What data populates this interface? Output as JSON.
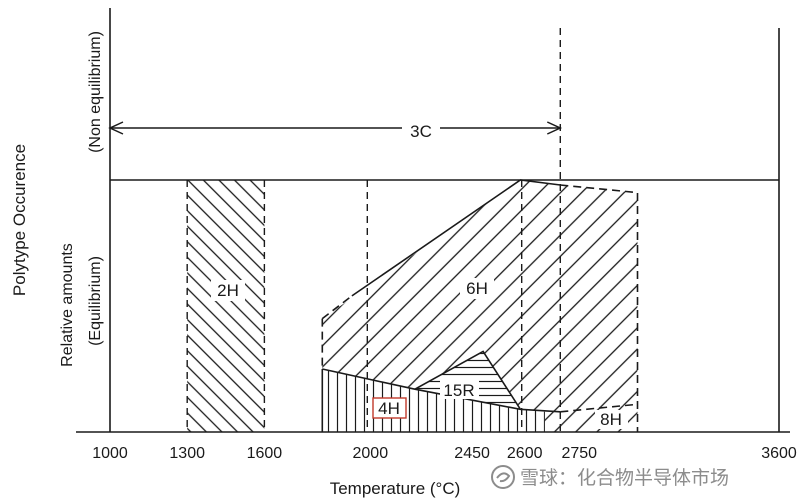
{
  "chart_data": {
    "type": "area",
    "xlabel": "Temperature (°C)",
    "ylabel": "Polytype Occurence",
    "xlim": [
      1000,
      3600
    ],
    "ylim": [
      0,
      1
    ],
    "x_ticks": [
      {
        "value": 1000,
        "label": "1000"
      },
      {
        "value": 1300,
        "label": "1300"
      },
      {
        "value": 1600,
        "label": "1600"
      },
      {
        "value": 2000,
        "label": "2000"
      },
      {
        "value": 2450,
        "label": "2450"
      },
      {
        "value": 2600,
        "label": "2600"
      },
      {
        "value": 2750,
        "label": "2750"
      },
      {
        "value": 3600,
        "label": "3600"
      }
    ],
    "panels": {
      "non_equilibrium": {
        "label": "(Non equilibrium)"
      },
      "equilibrium": {
        "label_lines": [
          "Relative amounts",
          "(Equilibrium)"
        ]
      }
    },
    "series": [
      {
        "name": "3C",
        "panel": "non_equilibrium",
        "style": "double-arrow",
        "x_range": [
          1000,
          2750
        ]
      },
      {
        "name": "2H",
        "panel": "equilibrium",
        "hatch": "backslash",
        "points": [
          [
            1300,
            0
          ],
          [
            1600,
            0
          ],
          [
            1600,
            1
          ],
          [
            1300,
            1
          ]
        ]
      },
      {
        "name": "6H",
        "panel": "equilibrium",
        "hatch": "slash",
        "points": [
          [
            1825,
            0.45
          ],
          [
            2595,
            1.0
          ],
          [
            2750,
            0.98
          ],
          [
            3050,
            0.95
          ],
          [
            3050,
            0.11
          ],
          [
            2750,
            0.08
          ],
          [
            2595,
            0.09
          ],
          [
            2450,
            0.32
          ],
          [
            2185,
            0.17
          ],
          [
            1825,
            0.25
          ]
        ]
      },
      {
        "name": "15R",
        "panel": "equilibrium",
        "hatch": "horizontal",
        "points": [
          [
            2185,
            0.17
          ],
          [
            2450,
            0.32
          ],
          [
            2595,
            0.09
          ]
        ]
      },
      {
        "name": "4H",
        "panel": "equilibrium",
        "hatch": "vertical",
        "points": [
          [
            1825,
            0.25
          ],
          [
            2185,
            0.17
          ],
          [
            2595,
            0.09
          ],
          [
            2690,
            0.08
          ],
          [
            2690,
            0
          ],
          [
            1825,
            0
          ]
        ]
      },
      {
        "name": "8H",
        "panel": "equilibrium",
        "hatch": "slash",
        "points": [
          [
            2690,
            0.08
          ],
          [
            2750,
            0.08
          ],
          [
            3050,
            0.11
          ],
          [
            3050,
            0
          ],
          [
            2690,
            0
          ]
        ]
      }
    ],
    "boundaries": [
      {
        "style": "dashed",
        "points": [
          [
            1825,
            0.45
          ],
          [
            1940,
            0.54
          ]
        ]
      },
      {
        "style": "solid",
        "points": [
          [
            1940,
            0.54
          ],
          [
            2595,
            1.0
          ],
          [
            2750,
            0.98
          ]
        ]
      },
      {
        "style": "dashed",
        "points": [
          [
            2750,
            0.98
          ],
          [
            3050,
            0.95
          ],
          [
            3050,
            0.0
          ]
        ]
      },
      {
        "style": "dashed",
        "points": [
          [
            1825,
            0.45
          ],
          [
            1825,
            0.25
          ]
        ]
      },
      {
        "style": "solid",
        "points": [
          [
            1825,
            0.25
          ],
          [
            1825,
            0.0
          ]
        ]
      },
      {
        "style": "solid",
        "points": [
          [
            1825,
            0.25
          ],
          [
            2185,
            0.17
          ],
          [
            2595,
            0.09
          ],
          [
            2750,
            0.08
          ]
        ]
      },
      {
        "style": "dashed",
        "points": [
          [
            2750,
            0.08
          ],
          [
            3050,
            0.11
          ]
        ]
      },
      {
        "style": "solid",
        "points": [
          [
            2185,
            0.17
          ],
          [
            2450,
            0.32
          ],
          [
            2595,
            0.09
          ]
        ]
      }
    ],
    "reference_lines": [
      {
        "x": 1300,
        "style": "dashed",
        "span": "equilibrium"
      },
      {
        "x": 1600,
        "style": "dashed",
        "span": "equilibrium"
      },
      {
        "x": 2000,
        "style": "dashed",
        "span": "equilibrium"
      },
      {
        "x": 2600,
        "style": "dashed",
        "span": "equilibrium"
      },
      {
        "x": 2750,
        "style": "dashed",
        "span": "both"
      }
    ],
    "highlight": {
      "series": "4H",
      "color": "#c0392b"
    },
    "ink_color": "#1a1a1a"
  },
  "watermark": {
    "text": "雪球：化合物半导体市场",
    "logo_icon": "snowball-logo-icon",
    "color": "#8c8c8c"
  }
}
